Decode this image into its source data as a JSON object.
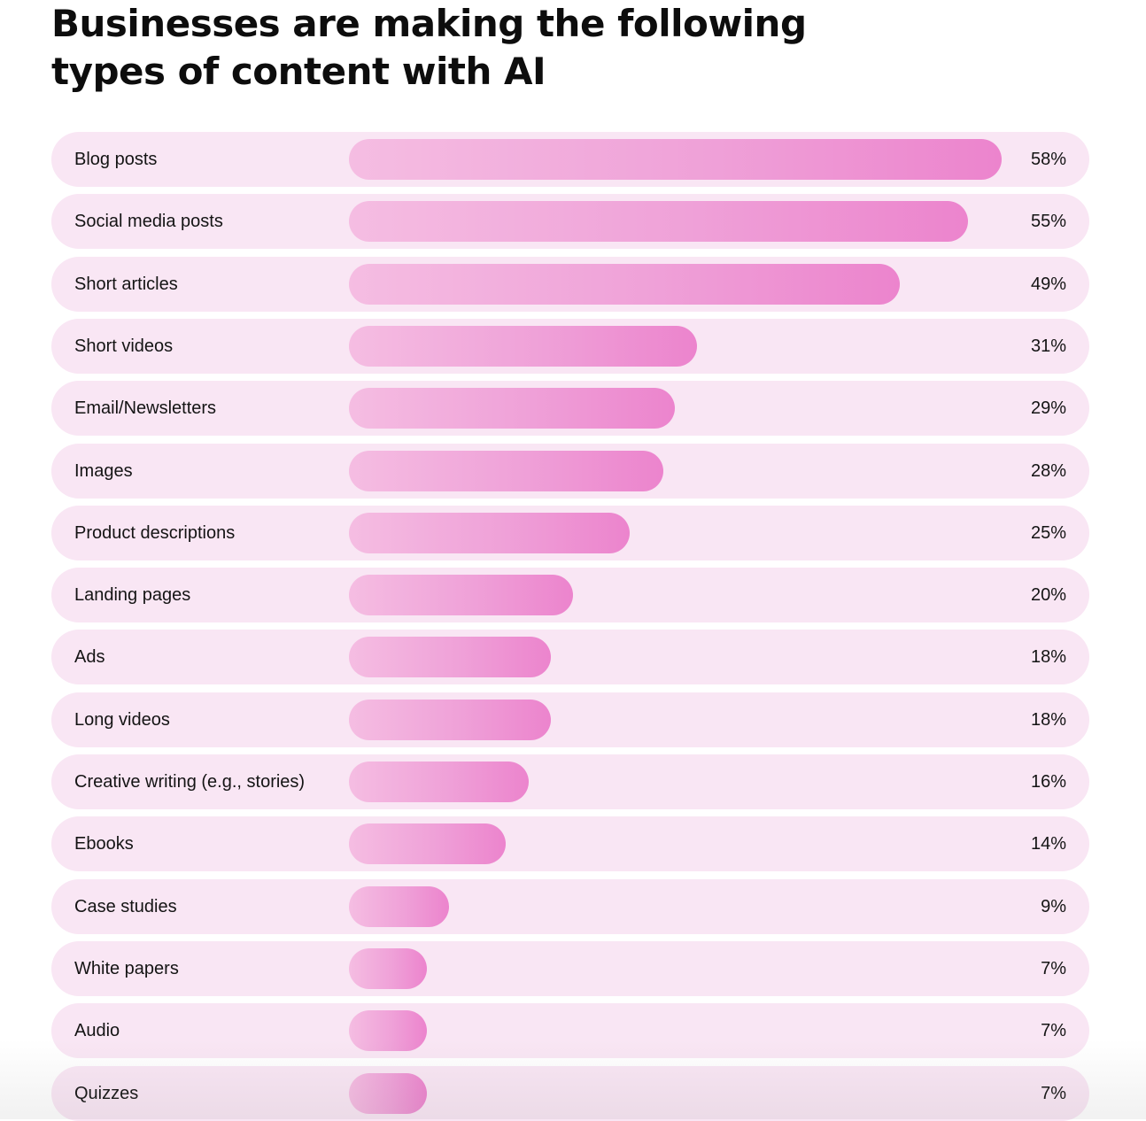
{
  "title": "Businesses are making the following types of content with AI",
  "colors": {
    "row_background": "#f9e6f4",
    "bar_start": "#f5bde2",
    "bar_end": "#ec84cd",
    "text": "#141414"
  },
  "chart_data": {
    "type": "bar",
    "orientation": "horizontal",
    "title": "Businesses are making the following types of content with AI",
    "xlabel": "",
    "ylabel": "",
    "xlim": [
      0,
      58
    ],
    "grid": false,
    "categories": [
      "Blog posts",
      "Social media posts",
      "Short articles",
      "Short videos",
      "Email/Newsletters",
      "Images",
      "Product descriptions",
      "Landing pages",
      "Ads",
      "Long videos",
      "Creative writing (e.g., stories)",
      "Ebooks",
      "Case studies",
      "White papers",
      "Audio",
      "Quizzes"
    ],
    "values": [
      58,
      55,
      49,
      31,
      29,
      28,
      25,
      20,
      18,
      18,
      16,
      14,
      9,
      7,
      7,
      7
    ],
    "value_labels": [
      "58%",
      "55%",
      "49%",
      "31%",
      "29%",
      "28%",
      "25%",
      "20%",
      "18%",
      "18%",
      "16%",
      "14%",
      "9%",
      "7%",
      "7%",
      "7%"
    ]
  }
}
